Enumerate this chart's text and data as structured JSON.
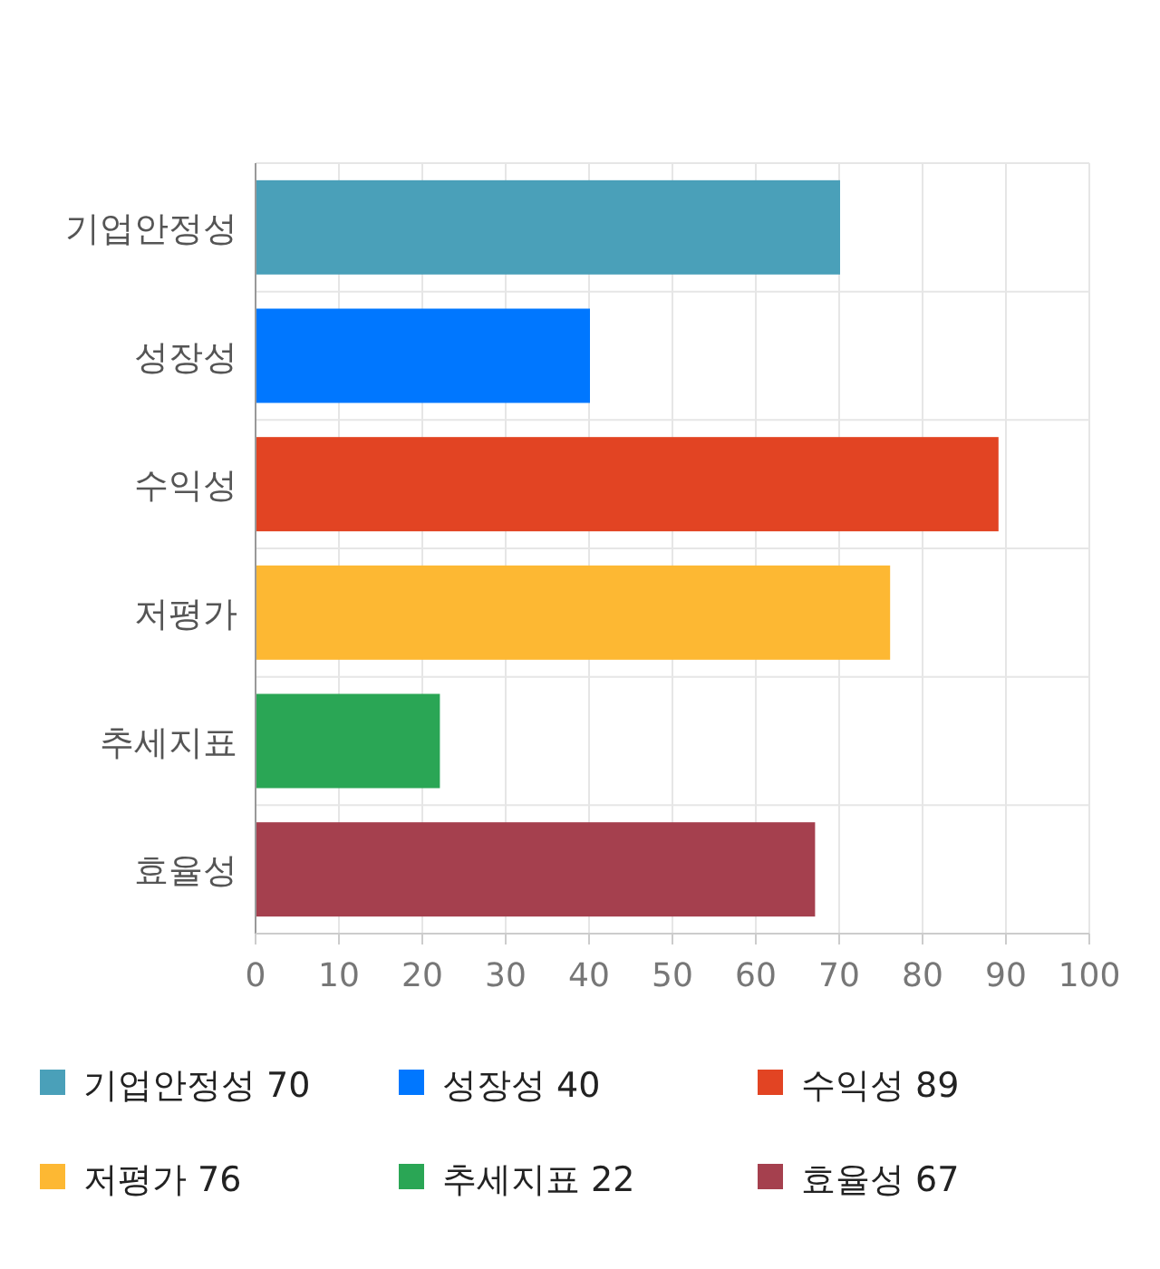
{
  "chart_data": {
    "type": "bar",
    "orientation": "horizontal",
    "categories": [
      "기업안정성",
      "성장성",
      "수익성",
      "저평가",
      "추세지표",
      "효율성"
    ],
    "series": [
      {
        "name": "기업안정성 70",
        "color": "#4aa0b9",
        "values": [
          70,
          null,
          null,
          null,
          null,
          null
        ]
      },
      {
        "name": "성장성 40",
        "color": "#0077ff",
        "values": [
          null,
          40,
          null,
          null,
          null,
          null
        ]
      },
      {
        "name": "수익성 89",
        "color": "#e24423",
        "values": [
          null,
          null,
          89,
          null,
          null,
          null
        ]
      },
      {
        "name": "저평가 76",
        "color": "#fdb833",
        "values": [
          null,
          null,
          null,
          76,
          null,
          null
        ]
      },
      {
        "name": "추세지표 22",
        "color": "#2aa655",
        "values": [
          null,
          null,
          null,
          null,
          22,
          null
        ]
      },
      {
        "name": "효율성 67",
        "color": "#a5404e",
        "values": [
          null,
          null,
          null,
          null,
          null,
          67
        ]
      }
    ],
    "xlim": [
      0,
      100
    ],
    "xticks": [
      0,
      10,
      20,
      30,
      40,
      50,
      60,
      70,
      80,
      90,
      100
    ],
    "grid": true,
    "legend": "bottom"
  }
}
